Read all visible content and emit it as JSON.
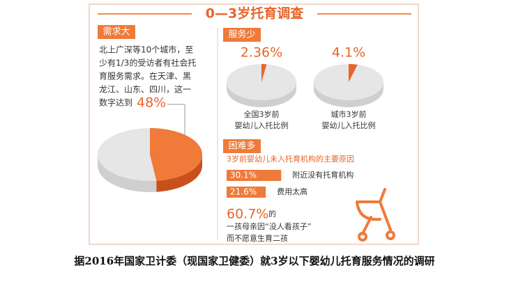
{
  "title": "0—3岁托育调查",
  "demand": {
    "label": "需求大",
    "lines": [
      "北上广深等10个城市，至",
      "少有1/3的受访者有社会托",
      "育服务需求。在天津、黑",
      "龙江、山东、四川，这一",
      "数字达到"
    ],
    "value": 48,
    "value_label": "48%"
  },
  "supply": {
    "label": "服务少",
    "items": [
      {
        "value": 2.36,
        "value_label": "2.36%",
        "caption": [
          "全国3岁前",
          "婴幼儿入托比例"
        ]
      },
      {
        "value": 4.1,
        "value_label": "4.1%",
        "caption": [
          "城市3岁前",
          "婴幼儿入托比例"
        ]
      }
    ]
  },
  "difficulty": {
    "label": "困难多",
    "subtitle": "3岁前婴幼儿未入托育机构的主要原因",
    "bars": [
      {
        "value": 30.1,
        "value_label": "30.1%",
        "reason": "附近没有托育机构"
      },
      {
        "value": 21.6,
        "value_label": "21.6%",
        "reason": "费用太高"
      }
    ],
    "highlight": {
      "value": 60.7,
      "value_label": "60.7%",
      "lines": [
        "的",
        "一孩母亲因“没人看孩子”",
        "而不愿意生育二孩"
      ]
    }
  },
  "footer": "据2016年国家卫计委（现国家卫健委）就3岁以下婴幼儿托育服务情况的调研"
}
